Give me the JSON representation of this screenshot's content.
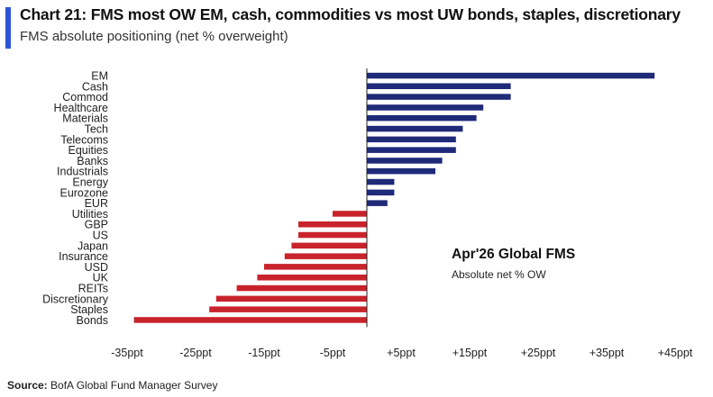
{
  "title": "Chart 21: FMS most OW EM, cash, commodities vs most UW bonds, staples, discretionary",
  "subtitle": "FMS absolute positioning (net % overweight)",
  "source_label": "Source:",
  "source_text": "BofA Global Fund Manager Survey",
  "annotation": {
    "title": "Apr'26 Global FMS",
    "subtitle": "Absolute net % OW"
  },
  "colors": {
    "positive": "#1f2a78",
    "negative": "#c8232c",
    "accent": "#2f55d4"
  },
  "chart_data": {
    "type": "bar",
    "orientation": "horizontal",
    "categories": [
      "EM",
      "Cash",
      "Commod",
      "Healthcare",
      "Materials",
      "Tech",
      "Telecoms",
      "Equities",
      "Banks",
      "Industrials",
      "Energy",
      "Eurozone",
      "EUR",
      "Utilities",
      "GBP",
      "US",
      "Japan",
      "Insurance",
      "USD",
      "UK",
      "REITs",
      "Discretionary",
      "Staples",
      "Bonds"
    ],
    "values": [
      42,
      21,
      21,
      17,
      16,
      14,
      13,
      13,
      11,
      10,
      4,
      4,
      3,
      -5,
      -10,
      -10,
      -11,
      -12,
      -15,
      -16,
      -19,
      -22,
      -23,
      -34
    ],
    "xlim": [
      -35,
      45
    ],
    "xticks": [
      -35,
      -25,
      -15,
      -5,
      5,
      15,
      25,
      35,
      45
    ],
    "xtick_labels": [
      "-35ppt",
      "-25ppt",
      "-15ppt",
      "-5ppt",
      "+5ppt",
      "+15ppt",
      "+25ppt",
      "+35ppt",
      "+45ppt"
    ],
    "xlabel": "",
    "ylabel": "",
    "grid": false
  }
}
